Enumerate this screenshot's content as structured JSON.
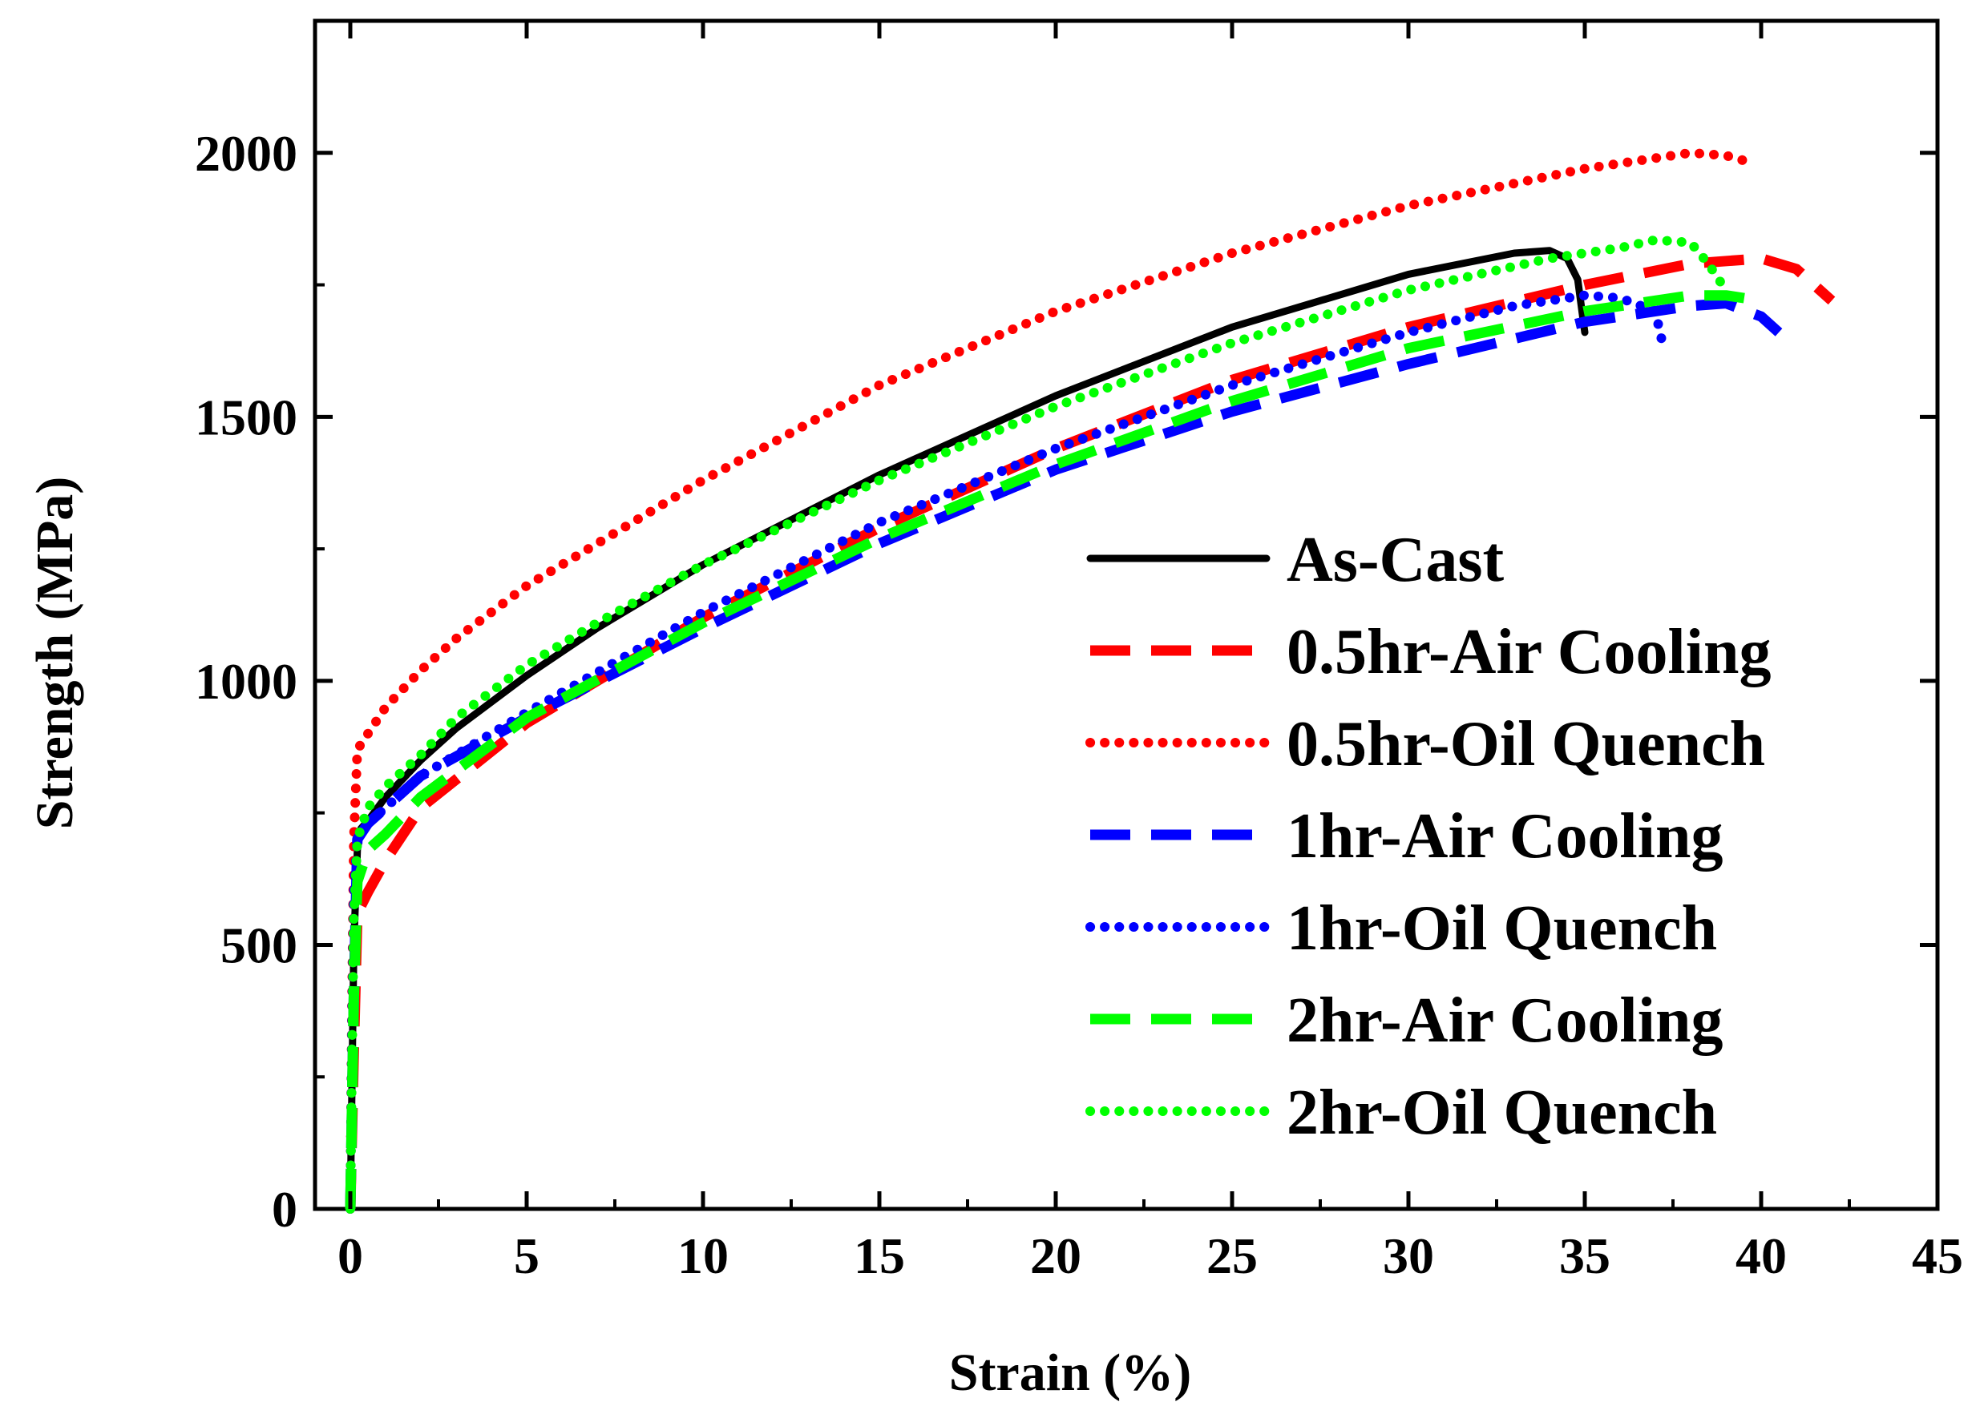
{
  "chart_data": {
    "type": "line",
    "title": "",
    "xlabel": "Strain (%)",
    "ylabel": "Strength (MPa)",
    "xlim": [
      -1,
      45
    ],
    "ylim": [
      0,
      2250
    ],
    "xticks": [
      0,
      5,
      10,
      15,
      20,
      25,
      30,
      35,
      40,
      45
    ],
    "xtick_labels": [
      "0",
      "5",
      "10",
      "15",
      "20",
      "25",
      "30",
      "35",
      "40",
      "45"
    ],
    "yticks": [
      0,
      500,
      1000,
      1500,
      2000
    ],
    "ytick_labels": [
      "0",
      "500",
      "1000",
      "1500",
      "2000"
    ],
    "grid": false,
    "legend_position": "right",
    "series": [
      {
        "name": "As-Cast",
        "color": "#000000",
        "style": "solid",
        "x": [
          0,
          0.05,
          0.1,
          0.2,
          0.3,
          0.5,
          1,
          2,
          3,
          5,
          7,
          10,
          15,
          20,
          25,
          30,
          33,
          34,
          34.5,
          34.8,
          35
        ],
        "y": [
          0,
          250,
          500,
          680,
          720,
          735,
          780,
          850,
          910,
          1010,
          1100,
          1220,
          1390,
          1540,
          1670,
          1770,
          1810,
          1815,
          1800,
          1760,
          1660
        ]
      },
      {
        "name": "0.5hr-Air Cooling",
        "color": "#ff0000",
        "style": "dashed",
        "x": [
          0,
          0.1,
          0.2,
          0.5,
          1,
          2,
          5,
          10,
          15,
          20,
          25,
          30,
          35,
          38,
          40,
          41,
          42
        ],
        "y": [
          0,
          300,
          560,
          600,
          660,
          760,
          920,
          1120,
          1290,
          1440,
          1570,
          1670,
          1750,
          1790,
          1800,
          1780,
          1720
        ]
      },
      {
        "name": "0.5hr-Oil Quench",
        "color": "#ff0000",
        "style": "dotted",
        "x": [
          0,
          0.05,
          0.1,
          0.2,
          0.5,
          1,
          2,
          3,
          5,
          7,
          10,
          15,
          20,
          25,
          30,
          35,
          37,
          38,
          39,
          39.8
        ],
        "y": [
          0,
          400,
          700,
          870,
          900,
          950,
          1020,
          1080,
          1180,
          1260,
          1380,
          1560,
          1700,
          1810,
          1900,
          1970,
          1990,
          2000,
          1995,
          1980
        ]
      },
      {
        "name": "1hr-Air Cooling",
        "color": "#0000ff",
        "style": "dashed",
        "x": [
          0,
          0.1,
          0.2,
          0.5,
          1,
          2,
          5,
          10,
          15,
          20,
          25,
          30,
          35,
          38,
          39,
          40,
          40.5
        ],
        "y": [
          0,
          400,
          700,
          730,
          760,
          820,
          930,
          1100,
          1260,
          1400,
          1510,
          1600,
          1680,
          1710,
          1715,
          1690,
          1660
        ]
      },
      {
        "name": "1hr-Oil Quench",
        "color": "#0000ff",
        "style": "dotted",
        "x": [
          0,
          0.05,
          0.1,
          0.2,
          0.5,
          1,
          2,
          5,
          10,
          15,
          20,
          25,
          30,
          33,
          35,
          36,
          37,
          37.2
        ],
        "y": [
          0,
          350,
          600,
          700,
          730,
          760,
          820,
          940,
          1130,
          1300,
          1440,
          1560,
          1660,
          1710,
          1730,
          1725,
          1700,
          1640
        ]
      },
      {
        "name": "2hr-Air Cooling",
        "color": "#00ff00",
        "style": "dashed",
        "x": [
          0,
          0.1,
          0.2,
          0.5,
          1,
          2,
          5,
          10,
          15,
          20,
          25,
          30,
          35,
          38,
          39,
          40
        ],
        "y": [
          0,
          400,
          620,
          680,
          710,
          780,
          930,
          1110,
          1270,
          1410,
          1530,
          1630,
          1700,
          1730,
          1730,
          1720
        ]
      },
      {
        "name": "2hr-Oil Quench",
        "color": "#00ff00",
        "style": "dotted",
        "x": [
          0,
          0.05,
          0.1,
          0.2,
          0.5,
          1,
          2,
          3,
          5,
          7,
          10,
          15,
          20,
          25,
          30,
          34,
          36,
          37,
          38,
          38.5,
          39
        ],
        "y": [
          0,
          300,
          550,
          700,
          760,
          800,
          860,
          930,
          1030,
          1110,
          1220,
          1380,
          1520,
          1640,
          1740,
          1800,
          1820,
          1835,
          1830,
          1790,
          1740
        ]
      }
    ]
  }
}
